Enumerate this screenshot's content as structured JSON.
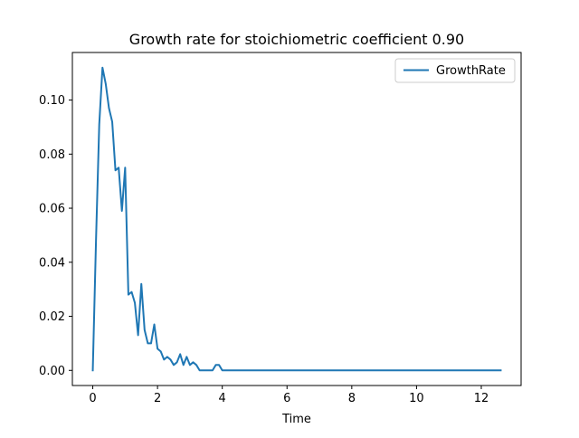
{
  "chart_data": {
    "type": "line",
    "title": "Growth rate for stoichiometric coefficient 0.90",
    "xlabel": "Time",
    "ylabel": "",
    "xlim": [
      -0.63,
      13.23
    ],
    "ylim": [
      -0.0056,
      0.1176
    ],
    "xticks": [
      0,
      2,
      4,
      6,
      8,
      10,
      12
    ],
    "xtick_labels": [
      "0",
      "2",
      "4",
      "6",
      "8",
      "10",
      "12"
    ],
    "yticks": [
      0.0,
      0.02,
      0.04,
      0.06,
      0.08,
      0.1
    ],
    "ytick_labels": [
      "0.00",
      "0.02",
      "0.04",
      "0.06",
      "0.08",
      "0.10"
    ],
    "grid": false,
    "legend": {
      "position": "top-right",
      "entries": [
        "GrowthRate"
      ]
    },
    "colors": {
      "line": "#1f77b4",
      "axes": "#000000",
      "background": "#ffffff"
    },
    "series": [
      {
        "name": "GrowthRate",
        "x": [
          0.0,
          0.1,
          0.2,
          0.3,
          0.4,
          0.5,
          0.6,
          0.7,
          0.8,
          0.9,
          1.0,
          1.1,
          1.2,
          1.3,
          1.4,
          1.5,
          1.6,
          1.7,
          1.8,
          1.9,
          2.0,
          2.1,
          2.2,
          2.3,
          2.4,
          2.5,
          2.6,
          2.7,
          2.8,
          2.9,
          3.0,
          3.1,
          3.2,
          3.3,
          3.4,
          3.5,
          3.6,
          3.7,
          3.8,
          3.9,
          4.0,
          4.1,
          5.0,
          6.0,
          7.0,
          8.0,
          9.0,
          10.0,
          11.0,
          12.0,
          12.6
        ],
        "y": [
          0.0,
          0.048,
          0.091,
          0.112,
          0.106,
          0.097,
          0.092,
          0.074,
          0.075,
          0.059,
          0.075,
          0.028,
          0.029,
          0.025,
          0.013,
          0.032,
          0.015,
          0.01,
          0.01,
          0.017,
          0.008,
          0.007,
          0.004,
          0.005,
          0.004,
          0.002,
          0.003,
          0.006,
          0.002,
          0.005,
          0.002,
          0.003,
          0.002,
          0.0,
          0.0,
          0.0,
          0.0,
          0.0,
          0.002,
          0.002,
          0.0,
          0.0,
          0.0,
          0.0,
          0.0,
          0.0,
          0.0,
          0.0,
          0.0,
          0.0,
          0.0
        ]
      }
    ]
  }
}
